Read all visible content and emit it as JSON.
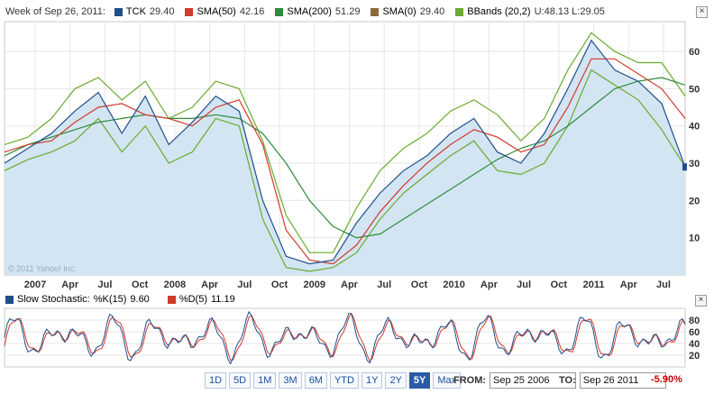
{
  "legend": {
    "date_label": "Week of Sep 26, 2011:",
    "items": [
      {
        "name": "TCK",
        "value": "29.40",
        "color": "#1f4e8c"
      },
      {
        "name": "SMA(50)",
        "value": "42.16",
        "color": "#d23a2c"
      },
      {
        "name": "SMA(200)",
        "value": "51.29",
        "color": "#2e8b3a"
      },
      {
        "name": "SMA(0)",
        "value": "29.40",
        "color": "#8b6a3a"
      },
      {
        "name": "BBands (20,2)",
        "value": "U:48.13 L:29.05",
        "color": "#6aab2e"
      }
    ],
    "close_icon": "×"
  },
  "copyright": "© 2011 Yahoo! Inc.",
  "chart_data": [
    {
      "type": "line",
      "panel": "price",
      "ylim": [
        0,
        68
      ],
      "yticks": [
        10,
        20,
        30,
        40,
        50,
        60
      ],
      "x_tick_labels": [
        "2007",
        "Apr",
        "Jul",
        "Oct",
        "2008",
        "Apr",
        "Jul",
        "Oct",
        "2009",
        "Apr",
        "Jul",
        "Oct",
        "2010",
        "Apr",
        "Jul",
        "Oct",
        "2011",
        "Apr",
        "Jul"
      ],
      "x": [
        "2006-10",
        "2007-01",
        "2007-03",
        "2007-05",
        "2007-07",
        "2007-09",
        "2007-11",
        "2008-01",
        "2008-03",
        "2008-05",
        "2008-07",
        "2008-09",
        "2008-11",
        "2009-01",
        "2009-03",
        "2009-05",
        "2009-07",
        "2009-09",
        "2009-11",
        "2010-01",
        "2010-03",
        "2010-05",
        "2010-07",
        "2010-09",
        "2010-11",
        "2011-01",
        "2011-03",
        "2011-05",
        "2011-07",
        "2011-09"
      ],
      "series": [
        {
          "name": "TCK",
          "values": [
            30,
            34,
            38,
            44,
            49,
            38,
            48,
            35,
            41,
            48,
            44,
            20,
            5,
            3,
            4,
            14,
            22,
            28,
            32,
            38,
            42,
            33,
            30,
            38,
            50,
            63,
            55,
            52,
            46,
            29
          ]
        },
        {
          "name": "SMA(50)",
          "values": [
            33,
            35,
            36,
            41,
            45,
            46,
            43,
            42,
            40,
            45,
            47,
            35,
            12,
            4,
            3,
            8,
            17,
            24,
            30,
            35,
            39,
            37,
            33,
            35,
            45,
            58,
            58,
            54,
            50,
            42
          ]
        },
        {
          "name": "SMA(200)",
          "values": [
            32,
            35,
            37,
            39,
            41,
            42,
            43,
            42,
            42,
            43,
            42,
            38,
            30,
            20,
            13,
            10,
            11,
            15,
            19,
            23,
            27,
            31,
            34,
            36,
            40,
            45,
            50,
            52,
            53,
            51
          ]
        },
        {
          "name": "BBands (20,2)",
          "values": [
            35,
            37,
            42,
            50,
            53,
            47,
            52,
            42,
            45,
            52,
            50,
            36,
            16,
            6,
            6,
            18,
            28,
            34,
            38,
            44,
            47,
            43,
            36,
            42,
            55,
            65,
            60,
            57,
            57,
            48
          ]
        },
        {
          "name": "",
          "values": [
            28,
            31,
            33,
            36,
            42,
            33,
            40,
            30,
            33,
            42,
            40,
            15,
            2,
            1,
            2,
            6,
            15,
            22,
            27,
            32,
            36,
            28,
            27,
            30,
            40,
            55,
            51,
            47,
            39,
            29
          ]
        }
      ]
    },
    {
      "type": "line",
      "panel": "stochastic",
      "title": "Slow Stochastic:",
      "ylim": [
        0,
        100
      ],
      "yticks": [
        20,
        40,
        60,
        80
      ],
      "series": [
        {
          "name": "%K(15)",
          "value": "9.60",
          "color": "#1f4e8c"
        },
        {
          "name": "%D(5)",
          "value": "11.19",
          "color": "#d23a2c"
        }
      ]
    }
  ],
  "ranges": [
    "1D",
    "5D",
    "1M",
    "3M",
    "6M",
    "YTD",
    "1Y",
    "2Y",
    "5Y",
    "Max"
  ],
  "active_range": "5Y",
  "from_label": "FROM:",
  "from_value": "Sep 25 2006",
  "to_label": "TO:",
  "to_value": "Sep 26 2011",
  "change": "-5.90%"
}
